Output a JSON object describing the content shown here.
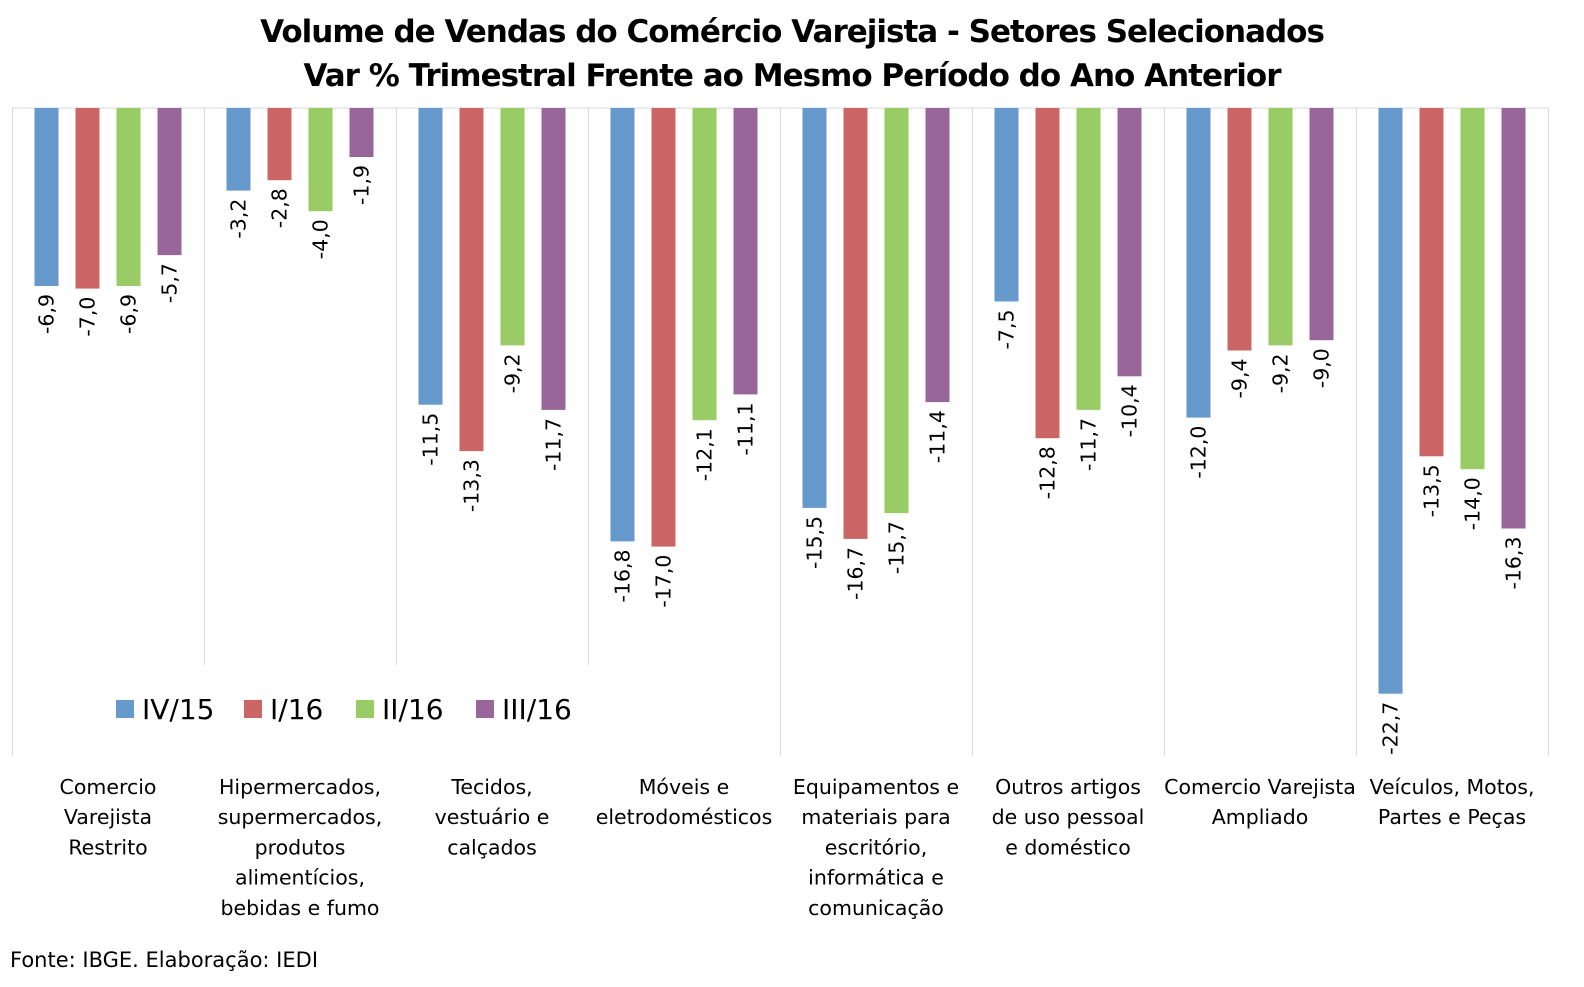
{
  "chart_data": {
    "type": "bar",
    "title": "Volume de Vendas do Comércio Varejista - Setores Selecionados",
    "subtitle": "Var % Trimestral Frente ao Mesmo Período do Ano Anterior",
    "categories": [
      "Comercio Varejista Restrito",
      "Hipermercados, supermercados, produtos alimentícios, bebidas e fumo",
      "Tecidos, vestuário e calçados",
      "Móveis e eletrodomésticos",
      "Equipamentos e materiais para escritório, informática e comunicação",
      "Outros artigos de uso pessoal e doméstico",
      "Comercio Varejista Ampliado",
      "Veículos, Motos, Partes e Peças"
    ],
    "category_lines": [
      [
        "Comercio",
        "Varejista",
        "Restrito"
      ],
      [
        "Hipermercados,",
        "supermercados,",
        "produtos",
        "alimentícios,",
        "bebidas e fumo"
      ],
      [
        "Tecidos,",
        "vestuário e",
        "calçados"
      ],
      [
        "Móveis e",
        "eletrodomésticos"
      ],
      [
        "Equipamentos e",
        "materiais para",
        "escritório,",
        "informática e",
        "comunicação"
      ],
      [
        "Outros artigos",
        "de uso pessoal",
        "e doméstico"
      ],
      [
        "Comercio Varejista",
        "Ampliado"
      ],
      [
        "Veículos, Motos,",
        "Partes e Peças"
      ]
    ],
    "series": [
      {
        "name": "IV/15",
        "color": "#6699cc",
        "values": [
          -6.9,
          -3.2,
          -11.5,
          -16.8,
          -15.5,
          -7.5,
          -12.0,
          -22.7
        ]
      },
      {
        "name": "I/16",
        "color": "#cc6666",
        "values": [
          -7.0,
          -2.8,
          -13.3,
          -17.0,
          -16.7,
          -12.8,
          -9.4,
          -13.5
        ]
      },
      {
        "name": "II/16",
        "color": "#99cc66",
        "values": [
          -6.9,
          -4.0,
          -9.2,
          -12.1,
          -15.7,
          -11.7,
          -9.2,
          -14.0
        ]
      },
      {
        "name": "III/16",
        "color": "#996699",
        "values": [
          -5.7,
          -1.9,
          -11.7,
          -11.1,
          -11.4,
          -10.4,
          -9.0,
          -16.3
        ]
      }
    ],
    "ylim": [
      -25,
      0
    ],
    "grid": false,
    "legend_position": "bottom-left",
    "data_labels": true,
    "decimal_separator": ","
  },
  "source": "Fonte: IBGE. Elaboração: IEDI"
}
